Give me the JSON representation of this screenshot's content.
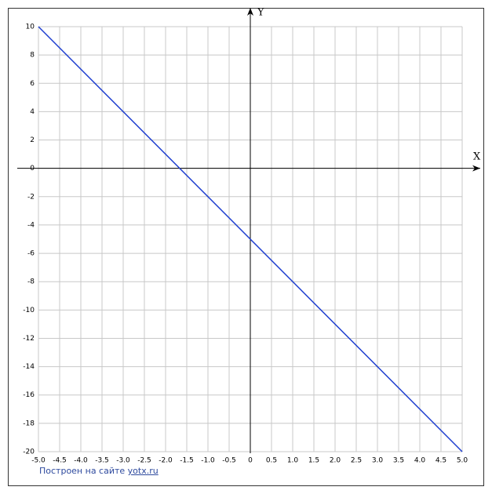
{
  "chart_data": {
    "type": "line",
    "x_label": "X",
    "y_label": "Y",
    "x": [
      -5,
      5
    ],
    "series": [
      {
        "color": "#1f3fd0",
        "values": [
          10,
          -20
        ]
      }
    ],
    "xlim": [
      -5,
      5
    ],
    "ylim": [
      -20,
      10
    ],
    "xticks": [
      {
        "value": -5,
        "label": "-5.0"
      },
      -4.5,
      {
        "value": -4,
        "label": "-4.0"
      },
      -3.5,
      {
        "value": -3,
        "label": "-3.0"
      },
      -2.5,
      {
        "value": -2,
        "label": "-2.0"
      },
      -1.5,
      {
        "value": -1,
        "label": "-1.0"
      },
      -0.5,
      0,
      0.5,
      {
        "value": 1,
        "label": "1.0"
      },
      1.5,
      {
        "value": 2,
        "label": "2.0"
      },
      2.5,
      {
        "value": 3,
        "label": "3.0"
      },
      3.5,
      {
        "value": 4,
        "label": "4.0"
      },
      4.5,
      {
        "value": 5,
        "label": "5.0"
      }
    ],
    "yticks": [
      10,
      8,
      6,
      4,
      2,
      0,
      -2,
      -4,
      -6,
      -8,
      -10,
      -12,
      -14,
      -16,
      -18,
      -20
    ],
    "grid": true
  },
  "footer": {
    "text": "Построен на сайте",
    "link": "yotx.ru"
  }
}
